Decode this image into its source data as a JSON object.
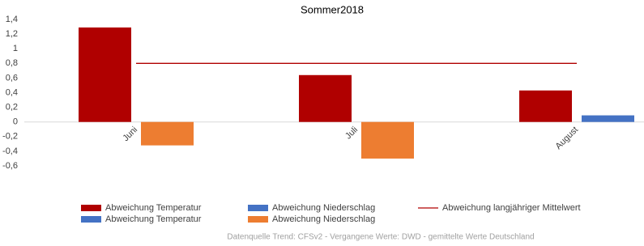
{
  "chart_data": {
    "type": "bar",
    "title": "Sommer2018",
    "categories": [
      "Juni",
      "Juli",
      "August"
    ],
    "series": [
      {
        "name": "Abweichung Temperatur",
        "type": "bar",
        "color": "#b00000",
        "values": [
          1.29,
          0.64,
          0.43
        ]
      },
      {
        "name": "Abweichung Niederschlag",
        "type": "bar",
        "color": "#4472c4",
        "values": [
          null,
          null,
          0.09
        ]
      },
      {
        "name": "Abweichung langjähriger Mittelwert",
        "type": "line",
        "color": "#b00000",
        "values": [
          0.8,
          0.8,
          0.8
        ]
      },
      {
        "name": "Abweichung Temperatur",
        "type": "bar",
        "color": "#4472c4",
        "values": [
          null,
          null,
          null
        ]
      },
      {
        "name": "Abweichung Niederschlag",
        "type": "bar",
        "color": "#ed7d31",
        "values": [
          -0.32,
          -0.5,
          null
        ]
      }
    ],
    "ylim": [
      -0.6,
      1.4
    ],
    "yticks": [
      {
        "value": -0.6,
        "label": "-0,6"
      },
      {
        "value": -0.4,
        "label": "-0,4"
      },
      {
        "value": -0.2,
        "label": "-0,2"
      },
      0,
      {
        "value": 0.2,
        "label": "0,2"
      },
      {
        "value": 0.4,
        "label": "0,4"
      },
      {
        "value": 0.6,
        "label": "0,6"
      },
      {
        "value": 0.8,
        "label": "0,8"
      },
      1,
      {
        "value": 1.2,
        "label": "1,2"
      },
      {
        "value": 1.4,
        "label": "1,4"
      }
    ],
    "grid": false,
    "legend": "bottom",
    "footnote": "Datenquelle Trend: CFSv2 - Vergangene Werte: DWD - gemittelte Werte Deutschland"
  }
}
